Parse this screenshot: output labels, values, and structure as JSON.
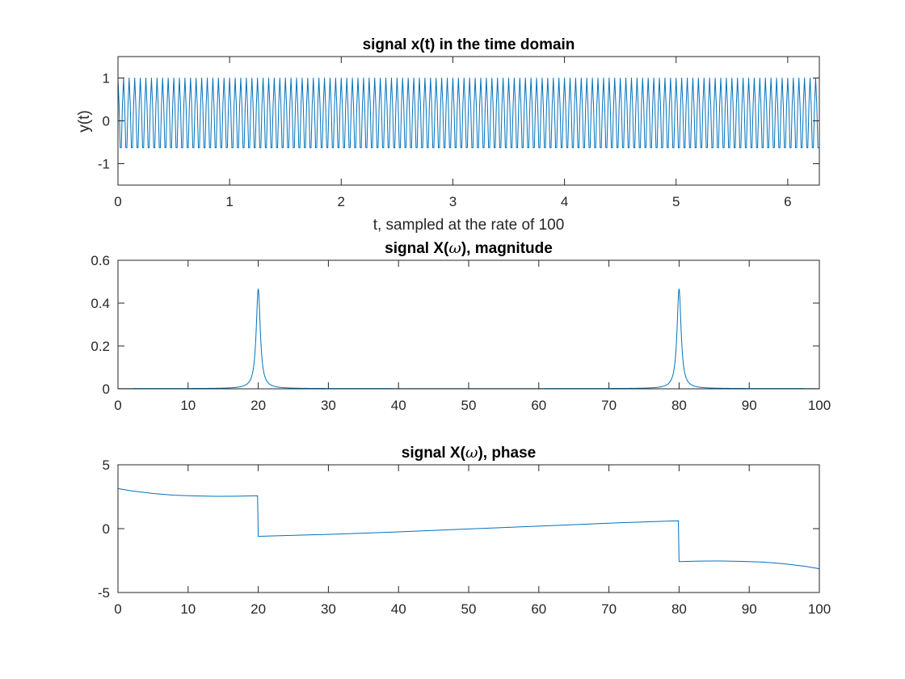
{
  "chart_data": [
    {
      "id": "time",
      "type": "line",
      "title": "signal x(t) in the time domain",
      "xlabel": "t, sampled at the rate of 100",
      "ylabel": "y(t)",
      "xlim": [
        0,
        6.2832
      ],
      "ylim": [
        -1.5,
        1.5
      ],
      "xticks": [
        0,
        1,
        2,
        3,
        4,
        5,
        6
      ],
      "yticks": [
        -1,
        0,
        1
      ],
      "grid": false,
      "series": [
        {
          "signal": "0.1 + 0.9*cos(2*pi*20*t)",
          "sample_rate": 100,
          "t_start": 0,
          "t_end": 6.28,
          "y_max": 1.0,
          "y_min": -0.8,
          "color": "#0072BD"
        }
      ]
    },
    {
      "id": "magnitude",
      "type": "line",
      "title_prefix": "signal X(",
      "title_symbol": "ω",
      "title_suffix": "), magnitude",
      "xlabel": "",
      "ylabel": "",
      "xlim": [
        0,
        100
      ],
      "ylim": [
        0,
        0.6
      ],
      "xticks": [
        0,
        10,
        20,
        30,
        40,
        50,
        60,
        70,
        80,
        90,
        100
      ],
      "yticks": [
        0,
        0.2,
        0.4,
        0.6
      ],
      "grid": false,
      "series": [
        {
          "peaks": [
            {
              "x": 20,
              "y": 0.465
            },
            {
              "x": 80,
              "y": 0.465
            }
          ],
          "baseline": 0.001,
          "color": "#0072BD"
        }
      ]
    },
    {
      "id": "phase",
      "type": "line",
      "title_prefix": "signal X(",
      "title_symbol": "ω",
      "title_suffix": "), phase",
      "xlabel": "",
      "ylabel": "",
      "xlim": [
        0,
        100
      ],
      "ylim": [
        -5,
        5
      ],
      "xticks": [
        0,
        10,
        20,
        30,
        40,
        50,
        60,
        70,
        80,
        90,
        100
      ],
      "yticks": [
        -5,
        0,
        5
      ],
      "grid": false,
      "series": [
        {
          "points": [
            [
              0,
              3.14
            ],
            [
              2,
              2.95
            ],
            [
              5,
              2.75
            ],
            [
              8,
              2.62
            ],
            [
              11,
              2.56
            ],
            [
              14,
              2.53
            ],
            [
              17,
              2.54
            ],
            [
              19.9,
              2.58
            ],
            [
              20.0,
              -0.6
            ],
            [
              30,
              -0.45
            ],
            [
              40,
              -0.25
            ],
            [
              50,
              -0.02
            ],
            [
              60,
              0.2
            ],
            [
              70,
              0.43
            ],
            [
              79.9,
              0.62
            ],
            [
              80.0,
              -2.58
            ],
            [
              83,
              -2.54
            ],
            [
              86,
              -2.53
            ],
            [
              89,
              -2.56
            ],
            [
              92,
              -2.62
            ],
            [
              95,
              -2.75
            ],
            [
              98,
              -2.95
            ],
            [
              100,
              -3.14
            ]
          ],
          "color": "#0072BD"
        }
      ]
    }
  ]
}
